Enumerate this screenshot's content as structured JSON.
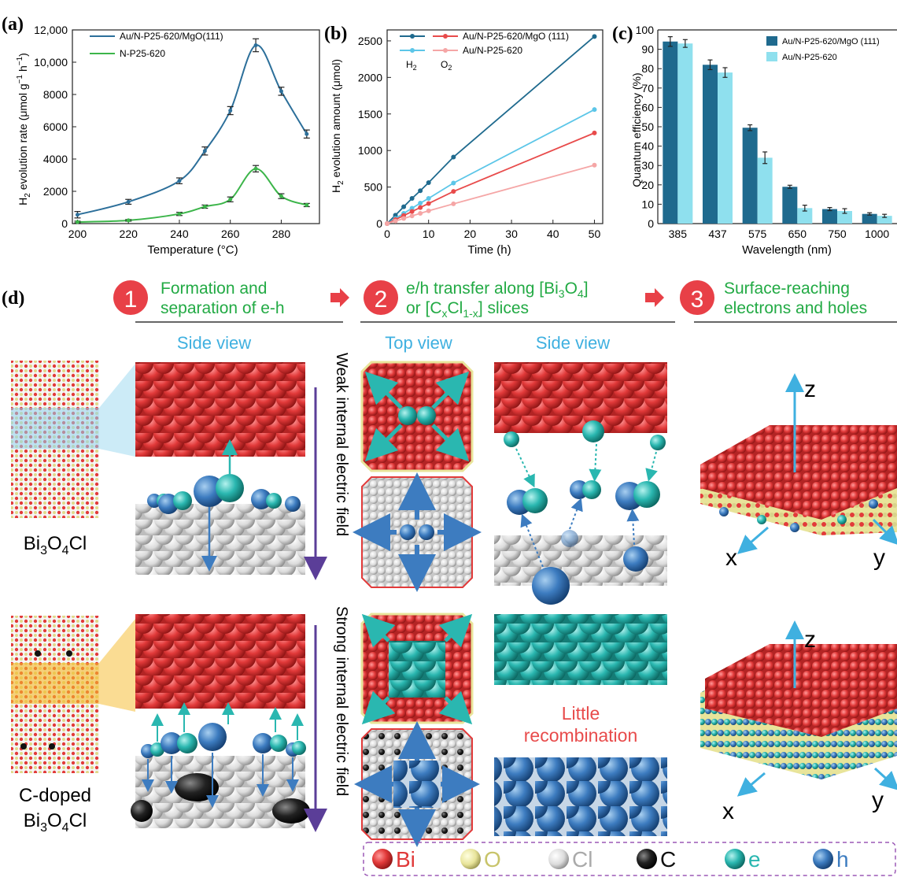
{
  "panel_labels": {
    "a": "(a)",
    "b": "(b)",
    "c": "(c)",
    "d": "(d)"
  },
  "colors": {
    "dark_blue": "#1f6a8e",
    "light_blue": "#5cc6e8",
    "green": "#3cb54a",
    "red": "#e84b4b",
    "pink": "#f5a6a6",
    "purple": "#5b3e98",
    "section_green": "#22aa44",
    "view_blue": "#3fb0e0",
    "badge_red": "#e84047"
  },
  "chart_data": [
    {
      "type": "line",
      "xlabel": "Temperature (°C)",
      "ylabel_parts": [
        "H",
        "2",
        " evolution rate (μmol g",
        "−1",
        " h",
        "−1",
        ")"
      ],
      "xlim": [
        198,
        295
      ],
      "ylim": [
        0,
        12000
      ],
      "xticks": [
        "200",
        "220",
        "240",
        "260",
        "280"
      ],
      "yticks": [
        "0",
        "2000",
        "4000",
        "6000",
        "8000",
        "10,000",
        "12,000"
      ],
      "legend": [
        "Au/N-P25-620/MgO(111)",
        "N-P25-620"
      ],
      "series": [
        {
          "name": "Au/N-P25-620/MgO(111)",
          "color": "#2c6f9a",
          "x": [
            200,
            220,
            240,
            250,
            260,
            270,
            280,
            290
          ],
          "y": [
            550,
            1350,
            2650,
            4500,
            7000,
            11050,
            8200,
            5550
          ],
          "err": [
            200,
            150,
            180,
            250,
            250,
            400,
            250,
            250
          ]
        },
        {
          "name": "N-P25-620",
          "color": "#3cb54a",
          "x": [
            200,
            220,
            240,
            250,
            260,
            270,
            280,
            290
          ],
          "y": [
            100,
            200,
            600,
            1050,
            1500,
            3400,
            1700,
            1150
          ],
          "err": [
            50,
            50,
            100,
            100,
            150,
            200,
            150,
            100
          ]
        }
      ]
    },
    {
      "type": "line",
      "xlabel": "Time (h)",
      "ylabel_parts": [
        "H",
        "2",
        " evolution amount (μmol)"
      ],
      "xlim": [
        0,
        52
      ],
      "ylim": [
        0,
        2650
      ],
      "xticks": [
        "0",
        "10",
        "20",
        "30",
        "40",
        "50"
      ],
      "yticks": [
        "0",
        "500",
        "1000",
        "1500",
        "2000",
        "2500"
      ],
      "legend_columns": [
        "H2",
        "O2"
      ],
      "legend_rows": [
        "Au/N-P25-620/MgO (111)",
        "Au/N-P25-620"
      ],
      "series": [
        {
          "name": "Au/N-P25-620/MgO (111) H2",
          "color": "#1f6a8e",
          "x": [
            0,
            2,
            4,
            6,
            8,
            10,
            16,
            50
          ],
          "y": [
            0,
            115,
            230,
            345,
            450,
            560,
            910,
            2560
          ]
        },
        {
          "name": "Au/N-P25-620 H2",
          "color": "#5cc6e8",
          "x": [
            0,
            2,
            4,
            6,
            8,
            10,
            16,
            50
          ],
          "y": [
            0,
            70,
            140,
            210,
            280,
            345,
            555,
            1560
          ]
        },
        {
          "name": "Au/N-P25-620/MgO (111) O2",
          "color": "#e84b4b",
          "x": [
            0,
            2,
            4,
            6,
            8,
            10,
            16,
            50
          ],
          "y": [
            0,
            55,
            110,
            165,
            220,
            275,
            440,
            1240
          ]
        },
        {
          "name": "Au/N-P25-620 O2",
          "color": "#f5a6a6",
          "x": [
            0,
            2,
            4,
            6,
            8,
            10,
            16,
            50
          ],
          "y": [
            0,
            35,
            70,
            105,
            140,
            175,
            270,
            800
          ]
        }
      ]
    },
    {
      "type": "bar",
      "xlabel": "Wavelength (nm)",
      "ylabel": "Quantum efficiency (%)",
      "ylim": [
        0,
        100
      ],
      "categories": [
        "385",
        "437",
        "575",
        "650",
        "750",
        "1000"
      ],
      "yticks": [
        "0",
        "10",
        "20",
        "30",
        "40",
        "50",
        "60",
        "70",
        "80",
        "90",
        "100"
      ],
      "series": [
        {
          "name": "Au/N-P25-620/MgO (111)",
          "color": "#1f6a8e",
          "values": [
            94,
            82,
            49.5,
            19,
            7.5,
            5
          ],
          "err": [
            2.5,
            2.5,
            1.5,
            0.8,
            0.8,
            0.6
          ]
        },
        {
          "name": "Au/N-P25-620",
          "color": "#8fe0ee",
          "values": [
            93,
            78,
            34,
            8,
            6.5,
            4
          ],
          "err": [
            2,
            2.5,
            3,
            1.5,
            1.2,
            0.8
          ]
        }
      ]
    }
  ],
  "schematic": {
    "step1": {
      "number": "1",
      "line1": "Formation and",
      "line2": "separation of e-h"
    },
    "step2": {
      "number": "2",
      "line1_pre": "e/h transfer along [Bi",
      "line1_sub1": "3",
      "line1_mid": "O",
      "line1_sub2": "4",
      "line1_post": "]",
      "line2_pre": "or [C",
      "line2_sub1": "x",
      "line2_mid": "Cl",
      "line2_sub2": "1-x",
      "line2_post": "] slices"
    },
    "step3": {
      "number": "3",
      "line1": "Surface-reaching",
      "line2": "electrons and holes"
    },
    "side_view": "Side view",
    "top_view": "Top view",
    "side_view_2": "Side view",
    "weak_field": "Weak internal electric field",
    "strong_field": "Strong internal electric field",
    "material1": {
      "pre": "Bi",
      "sub1": "3",
      "mid": "O",
      "sub2": "4",
      "post": "Cl"
    },
    "material2_line1": "C-doped",
    "material2": {
      "pre": "Bi",
      "sub1": "3",
      "mid": "O",
      "sub2": "4",
      "post": "Cl"
    },
    "little_recombination_1": "Little",
    "little_recombination_2": "recombination",
    "axes": {
      "z": "z",
      "x": "x",
      "y": "y"
    },
    "legend": [
      {
        "label": "Bi",
        "color": "#e03a3a",
        "text_color": "#e03a3a"
      },
      {
        "label": "O",
        "color": "#e8e49a",
        "text_color": "#c8c46a"
      },
      {
        "label": "Cl",
        "color": "#d8d8d8",
        "text_color": "#aaaaaa"
      },
      {
        "label": "C",
        "color": "#111111",
        "text_color": "#111111"
      },
      {
        "label": "e",
        "color": "#2ab7b0",
        "text_color": "#2ab7b0"
      },
      {
        "label": "h",
        "color": "#3d7cc0",
        "text_color": "#3d7cc0"
      }
    ]
  }
}
